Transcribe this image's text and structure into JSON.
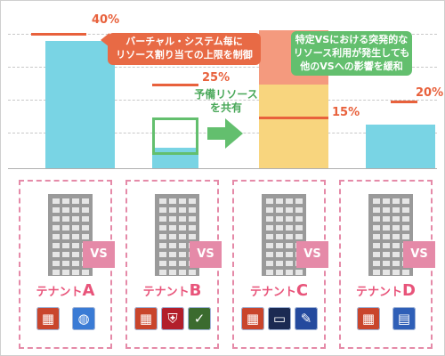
{
  "chart_data": {
    "type": "bar",
    "categories": [
      "テナントA",
      "テナントB",
      "テナントC",
      "テナントD"
    ],
    "series": [
      {
        "values": [
          38,
          6,
          25,
          13
        ]
      },
      {
        "values": [
          0,
          0,
          16,
          0
        ]
      }
    ],
    "limits": [
      40,
      25,
      15,
      20
    ],
    "limit_labels": [
      "40%",
      "25%",
      "15%",
      "20%"
    ],
    "ylim": [
      0,
      40
    ]
  },
  "callouts": {
    "limit_control": "バーチャル・システム毎に\nリソース割り当ての上限を制御",
    "mitigate": "特定VSにおける突発的な\nリソース利用が発生しても\n他のVSへの影響を緩和",
    "share": "予備リソース\nを共有"
  },
  "tenants": [
    {
      "prefix": "テナント",
      "letter": "A",
      "vs": "VS",
      "apps": [
        "firewall-icon",
        "network-globe-icon"
      ]
    },
    {
      "prefix": "テナント",
      "letter": "B",
      "vs": "VS",
      "apps": [
        "firewall-icon",
        "shield-icon",
        "certificate-icon"
      ]
    },
    {
      "prefix": "テナント",
      "letter": "C",
      "vs": "VS",
      "apps": [
        "firewall-icon",
        "monitor-icon",
        "syringe-icon"
      ]
    },
    {
      "prefix": "テナント",
      "letter": "D",
      "vs": "VS",
      "apps": [
        "firewall-icon",
        "browser-window-icon"
      ]
    }
  ],
  "colors": {
    "used": "#79d4e4",
    "burst": "#f49a7e",
    "shared": "#f8d57e",
    "limit": "#e8613c",
    "share_green": "#63bf6e",
    "callout_orange": "#e86a45",
    "tenant_pink": "#e58aa8"
  }
}
